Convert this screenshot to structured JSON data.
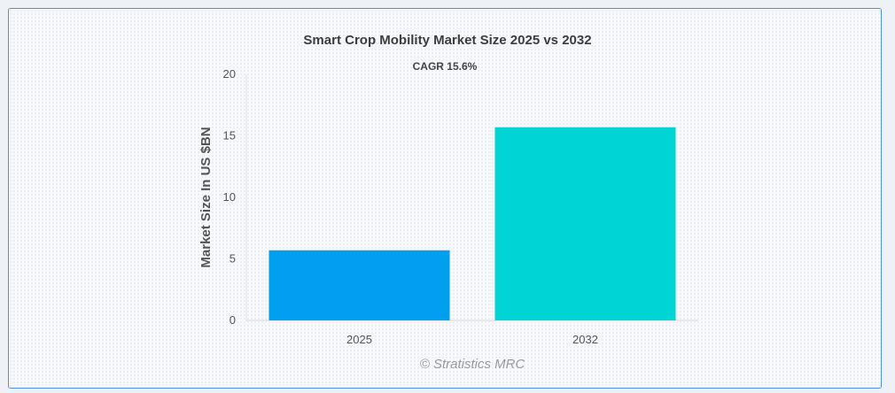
{
  "chart_data": {
    "type": "bar",
    "title": "Smart Crop Mobility Market Size 2025 vs 2032",
    "subtitle": "CAGR 15.6%",
    "xlabel": "",
    "ylabel": "Market Size In US $BN",
    "categories": [
      "2025",
      "2032"
    ],
    "values": [
      5.7,
      15.7
    ],
    "ylim": [
      0,
      20
    ],
    "yticks": [
      "0",
      "5",
      "10",
      "15",
      "20"
    ],
    "colors": [
      "#009ff0",
      "#00d4d4"
    ],
    "grid": false,
    "legend": "none"
  },
  "watermark": "© Stratistics MRC"
}
